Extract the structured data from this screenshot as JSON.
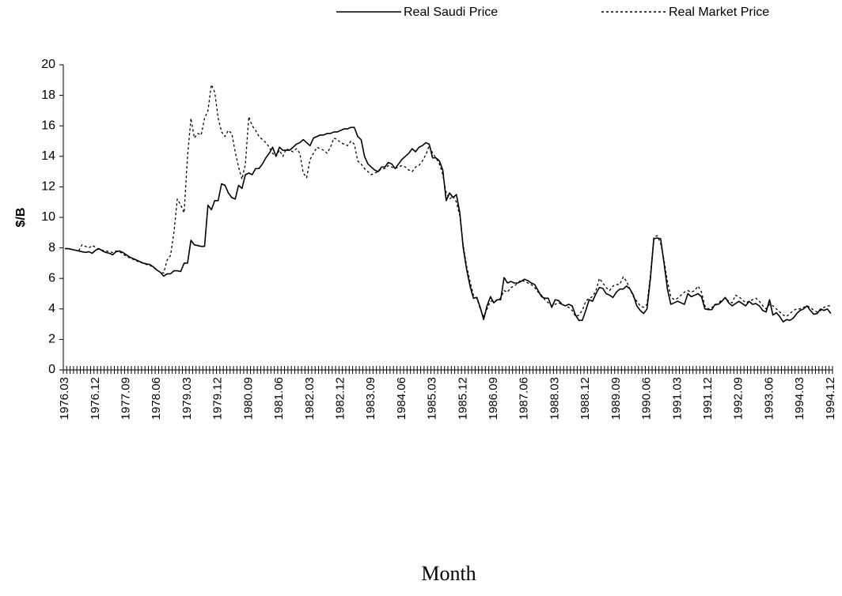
{
  "chart_data": {
    "type": "line",
    "y_label": "$/B",
    "x_label": "Month",
    "legend": "top",
    "ylim": [
      0,
      20
    ],
    "yticks": [
      0,
      2,
      4,
      6,
      8,
      10,
      12,
      14,
      16,
      18,
      20
    ],
    "categories": [
      "1976.03",
      null,
      null,
      null,
      null,
      null,
      null,
      null,
      null,
      "1976.12",
      null,
      null,
      null,
      null,
      null,
      null,
      null,
      null,
      "1977.09",
      null,
      null,
      null,
      null,
      null,
      null,
      null,
      null,
      "1978.06",
      null,
      null,
      null,
      null,
      null,
      null,
      null,
      null,
      "1979.03",
      null,
      null,
      null,
      null,
      null,
      null,
      null,
      null,
      "1979.12",
      null,
      null,
      null,
      null,
      null,
      null,
      null,
      null,
      "1980.09",
      null,
      null,
      null,
      null,
      null,
      null,
      null,
      null,
      "1981.06",
      null,
      null,
      null,
      null,
      null,
      null,
      null,
      null,
      "1982.03",
      null,
      null,
      null,
      null,
      null,
      null,
      null,
      null,
      "1982.12",
      null,
      null,
      null,
      null,
      null,
      null,
      null,
      null,
      "1983.09",
      null,
      null,
      null,
      null,
      null,
      null,
      null,
      null,
      "1984.06",
      null,
      null,
      null,
      null,
      null,
      null,
      null,
      null,
      "1985.03",
      null,
      null,
      null,
      null,
      null,
      null,
      null,
      null,
      "1985.12",
      null,
      null,
      null,
      null,
      null,
      null,
      null,
      null,
      "1986.09",
      null,
      null,
      null,
      null,
      null,
      null,
      null,
      null,
      "1987.06",
      null,
      null,
      null,
      null,
      null,
      null,
      null,
      null,
      "1988.03",
      null,
      null,
      null,
      null,
      null,
      null,
      null,
      null,
      "1988.12",
      null,
      null,
      null,
      null,
      null,
      null,
      null,
      null,
      "1989.09",
      null,
      null,
      null,
      null,
      null,
      null,
      null,
      null,
      "1990.06",
      null,
      null,
      null,
      null,
      null,
      null,
      null,
      null,
      "1991.03",
      null,
      null,
      null,
      null,
      null,
      null,
      null,
      null,
      "1991.12",
      null,
      null,
      null,
      null,
      null,
      null,
      null,
      null,
      "1992.09",
      null,
      null,
      null,
      null,
      null,
      null,
      null,
      null,
      "1993.06",
      null,
      null,
      null,
      null,
      null,
      null,
      null,
      null,
      "1994.03",
      null,
      null,
      null,
      null,
      null,
      null,
      null,
      null,
      "1994.12"
    ],
    "series": [
      {
        "name": "Real Saudi Price",
        "color": "#000000",
        "line_style": "solid",
        "values": [
          7.95,
          7.95,
          7.9,
          7.85,
          7.8,
          7.75,
          7.7,
          7.75,
          7.65,
          7.85,
          7.95,
          7.8,
          7.7,
          7.65,
          7.55,
          7.75,
          7.8,
          7.7,
          7.55,
          7.4,
          7.3,
          7.2,
          7.1,
          7.0,
          6.95,
          6.9,
          6.75,
          6.55,
          6.4,
          6.15,
          6.3,
          6.3,
          6.5,
          6.5,
          6.45,
          7.0,
          7.0,
          8.5,
          8.2,
          8.15,
          8.1,
          8.1,
          10.8,
          10.5,
          11.1,
          11.1,
          12.2,
          12.1,
          11.6,
          11.3,
          11.2,
          12.1,
          11.9,
          12.8,
          12.9,
          12.8,
          13.2,
          13.2,
          13.5,
          13.9,
          14.2,
          14.6,
          14.0,
          14.6,
          14.4,
          14.4,
          14.4,
          14.6,
          14.8,
          14.9,
          15.1,
          14.9,
          14.7,
          15.2,
          15.3,
          15.4,
          15.4,
          15.5,
          15.5,
          15.6,
          15.6,
          15.7,
          15.8,
          15.8,
          15.9,
          15.9,
          15.3,
          15.1,
          14.0,
          13.5,
          13.3,
          13.1,
          13.0,
          13.3,
          13.3,
          13.6,
          13.5,
          13.2,
          13.5,
          13.8,
          14.0,
          14.2,
          14.5,
          14.3,
          14.6,
          14.7,
          14.9,
          14.8,
          13.9,
          13.9,
          13.7,
          13.1,
          11.1,
          11.6,
          11.3,
          11.5,
          10.3,
          8.0,
          6.6,
          5.5,
          4.7,
          4.75,
          4.1,
          3.3,
          4.2,
          4.8,
          4.4,
          4.6,
          4.6,
          6.05,
          5.7,
          5.8,
          5.7,
          5.7,
          5.8,
          5.95,
          5.85,
          5.7,
          5.6,
          5.2,
          4.8,
          4.7,
          4.7,
          4.1,
          4.6,
          4.55,
          4.3,
          4.2,
          4.3,
          4.2,
          3.6,
          3.25,
          3.25,
          3.9,
          4.6,
          4.5,
          5.0,
          5.4,
          5.35,
          5.0,
          4.9,
          4.75,
          5.1,
          5.3,
          5.3,
          5.5,
          5.3,
          4.9,
          4.2,
          3.9,
          3.7,
          4.0,
          6.0,
          8.6,
          8.65,
          8.6,
          7.0,
          5.3,
          4.3,
          4.4,
          4.5,
          4.4,
          4.3,
          5.0,
          4.8,
          4.9,
          5.0,
          4.8,
          4.0,
          3.95,
          3.95,
          4.3,
          4.3,
          4.5,
          4.75,
          4.4,
          4.2,
          4.35,
          4.5,
          4.35,
          4.2,
          4.5,
          4.3,
          4.35,
          4.2,
          3.9,
          3.8,
          4.6,
          3.6,
          3.75,
          3.5,
          3.15,
          3.3,
          3.25,
          3.4,
          3.7,
          3.9,
          4.0,
          4.2,
          3.9,
          3.65,
          3.7,
          4.0,
          3.9,
          4.0,
          3.7
        ]
      },
      {
        "name": "Real Market Price",
        "color": "#000000",
        "line_style": "dotted",
        "values": [
          7.95,
          7.95,
          7.9,
          7.85,
          7.8,
          8.2,
          8.1,
          8.0,
          8.15,
          8.05,
          7.9,
          7.85,
          7.8,
          7.75,
          7.7,
          7.8,
          7.75,
          7.6,
          7.45,
          7.35,
          7.25,
          7.15,
          7.05,
          7.0,
          6.9,
          6.85,
          6.7,
          6.55,
          6.4,
          6.35,
          7.2,
          7.5,
          9.0,
          11.2,
          10.8,
          10.3,
          14.0,
          16.5,
          15.2,
          15.5,
          15.4,
          16.5,
          17.0,
          18.7,
          18.2,
          16.5,
          15.6,
          15.3,
          15.7,
          15.5,
          14.3,
          13.3,
          12.5,
          13.5,
          16.6,
          16.0,
          15.7,
          15.3,
          15.1,
          14.9,
          14.6,
          14.2,
          14.0,
          14.4,
          14.0,
          14.5,
          14.4,
          14.3,
          14.5,
          14.2,
          12.9,
          12.6,
          13.8,
          14.2,
          14.6,
          14.5,
          14.4,
          14.2,
          14.6,
          15.2,
          15.1,
          14.9,
          14.8,
          14.7,
          15.0,
          14.8,
          13.7,
          13.5,
          13.2,
          13.0,
          12.8,
          12.9,
          13.0,
          13.2,
          13.2,
          13.4,
          13.3,
          13.2,
          13.3,
          13.4,
          13.3,
          13.1,
          13.0,
          13.3,
          13.4,
          13.7,
          14.1,
          14.7,
          14.2,
          13.9,
          13.5,
          12.8,
          11.6,
          11.2,
          11.4,
          11.0,
          10.1,
          8.2,
          6.8,
          5.8,
          4.9,
          4.7,
          4.0,
          3.5,
          4.0,
          4.5,
          4.5,
          4.6,
          4.7,
          5.2,
          5.1,
          5.4,
          5.5,
          5.7,
          5.9,
          5.8,
          5.7,
          5.6,
          5.4,
          5.1,
          4.9,
          4.6,
          4.4,
          4.2,
          4.3,
          4.4,
          4.3,
          4.2,
          4.1,
          3.9,
          3.5,
          3.6,
          3.9,
          4.5,
          4.7,
          4.8,
          5.2,
          6.0,
          5.7,
          5.4,
          5.2,
          5.5,
          5.6,
          5.6,
          6.1,
          5.8,
          5.3,
          4.8,
          4.5,
          4.2,
          4.1,
          4.3,
          6.2,
          8.7,
          8.8,
          8.3,
          7.2,
          5.8,
          4.8,
          4.6,
          4.7,
          4.9,
          5.1,
          5.2,
          5.1,
          5.2,
          5.5,
          5.1,
          4.2,
          4.0,
          4.1,
          4.2,
          4.4,
          4.6,
          4.7,
          4.5,
          4.4,
          4.9,
          4.8,
          4.6,
          4.4,
          4.5,
          4.6,
          4.7,
          4.5,
          4.2,
          4.0,
          4.3,
          4.2,
          4.0,
          3.8,
          3.6,
          3.5,
          3.7,
          3.9,
          4.0,
          4.0,
          4.1,
          4.2,
          4.1,
          3.9,
          3.8,
          3.9,
          4.1,
          4.2,
          4.2
        ]
      }
    ]
  }
}
